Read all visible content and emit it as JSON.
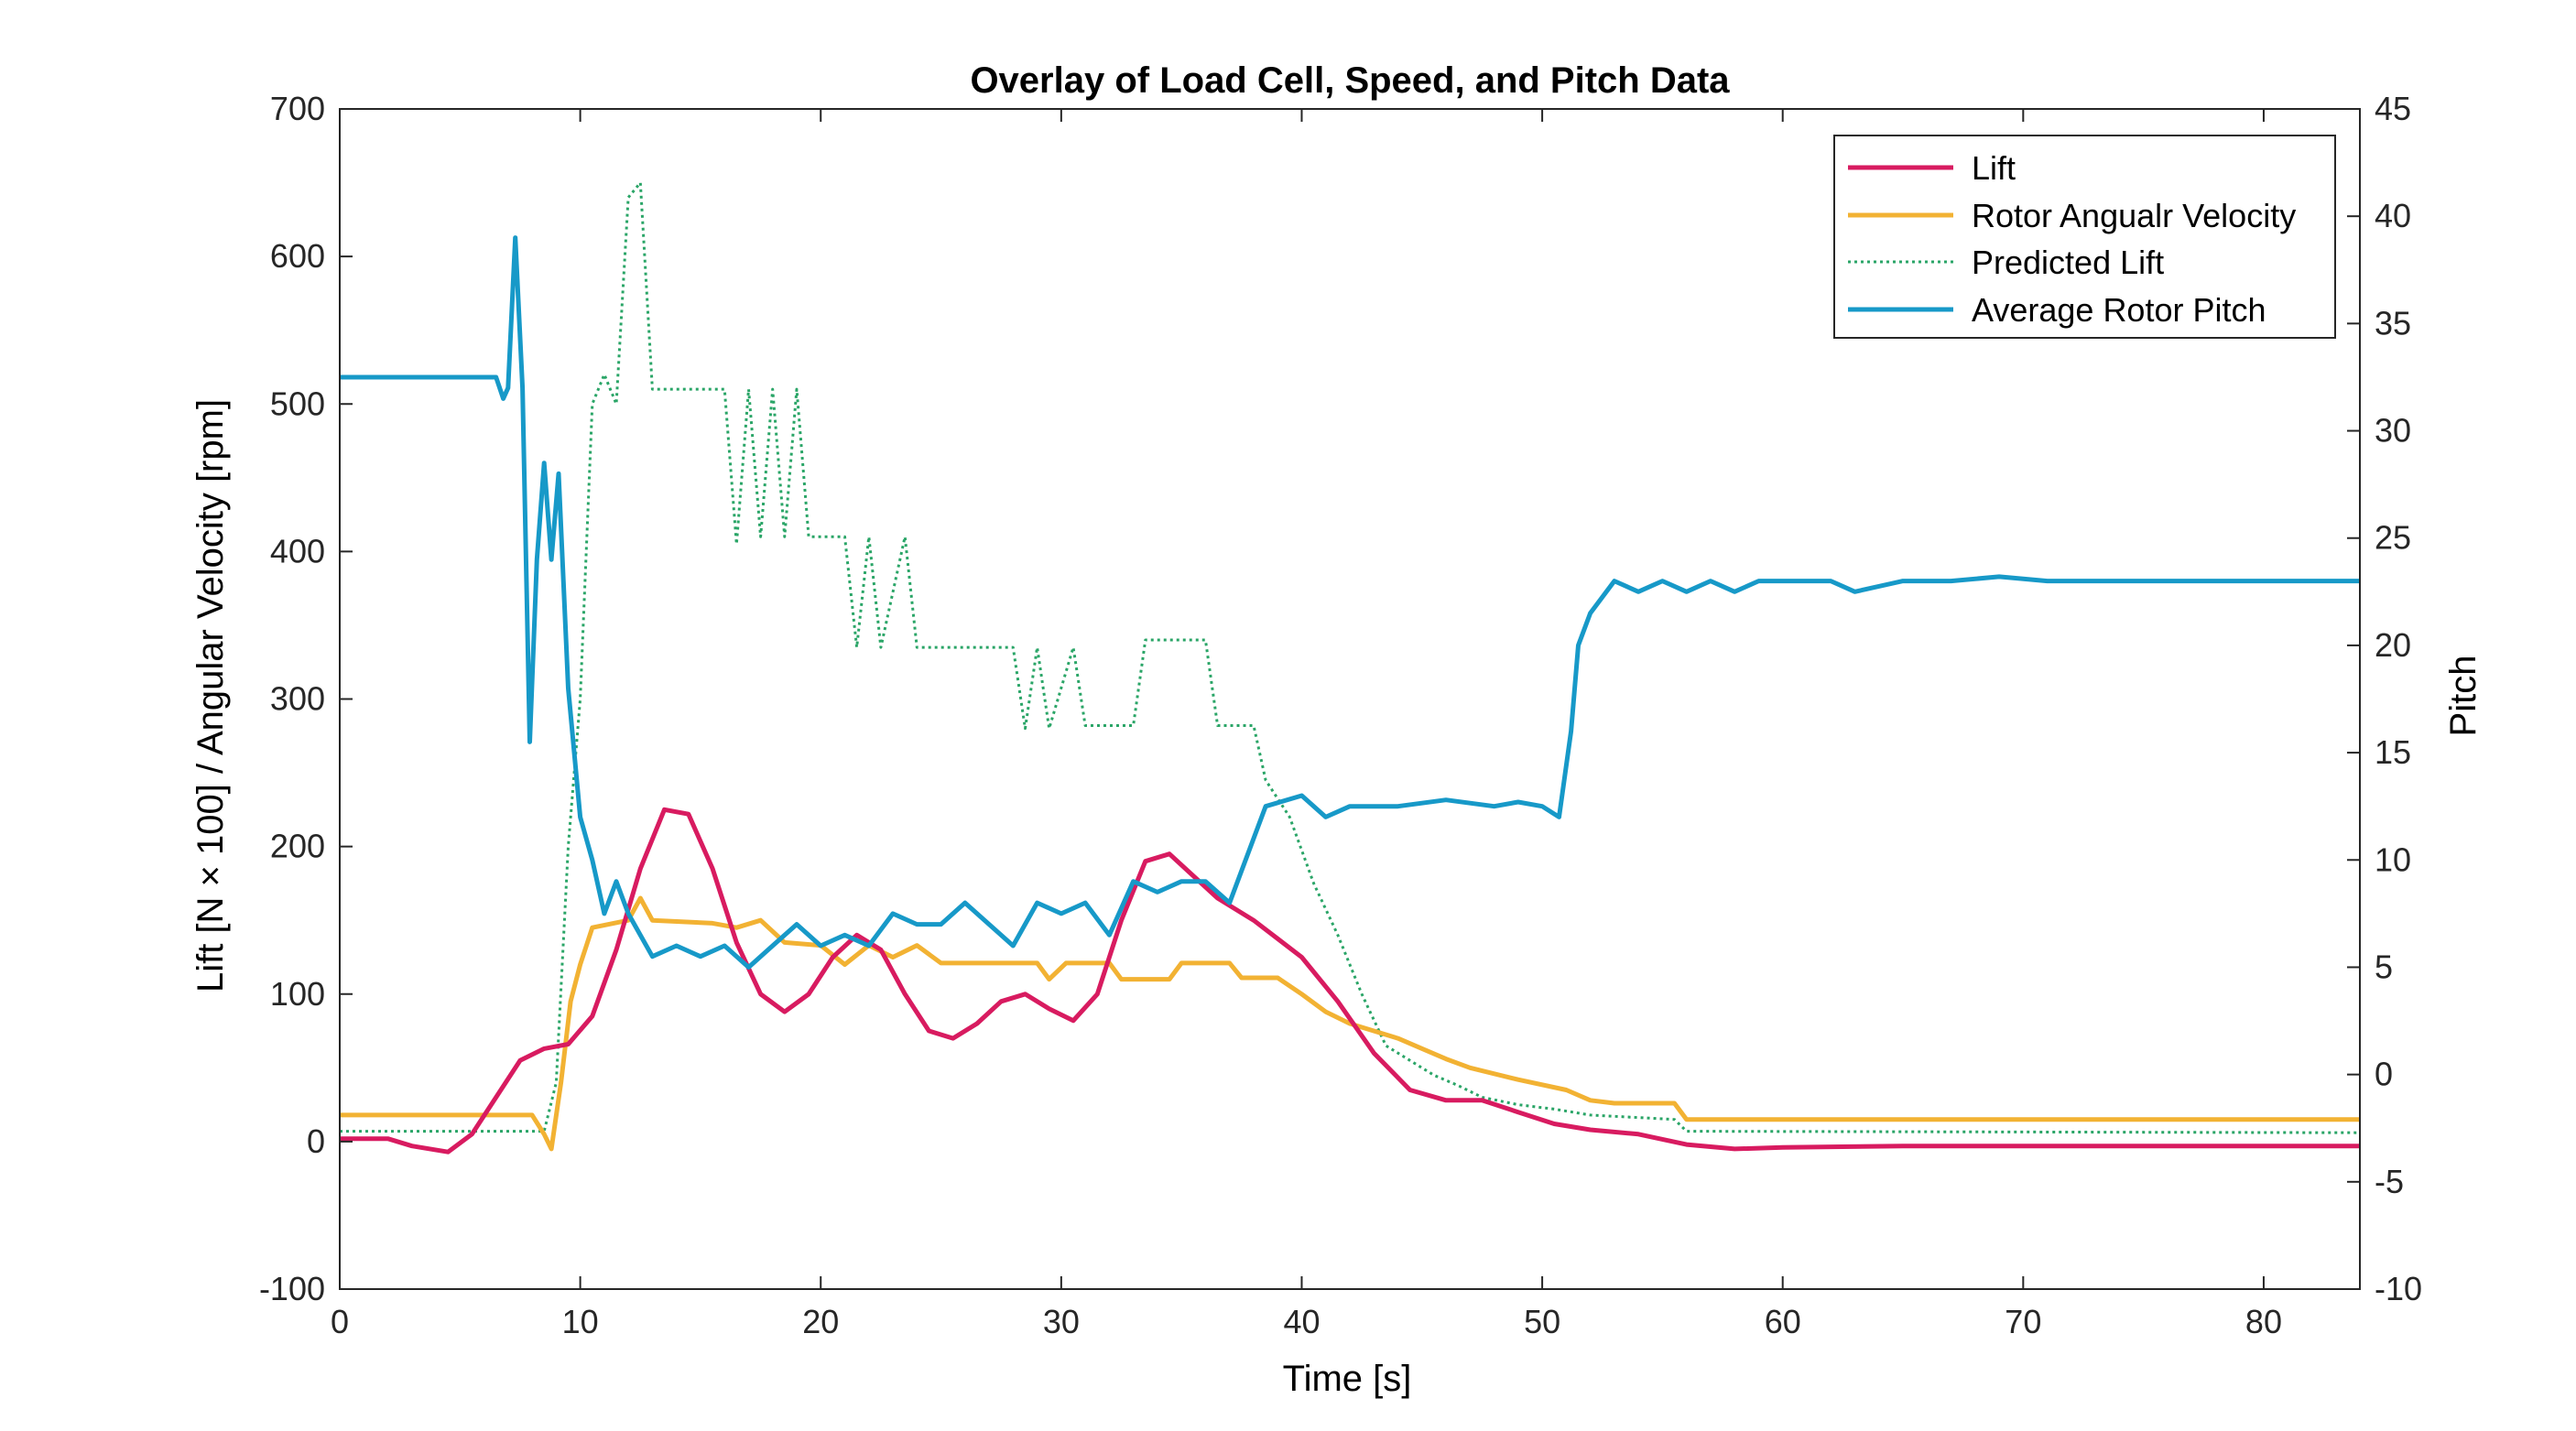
{
  "chart_data": {
    "type": "line",
    "title": "Overlay of Load Cell, Speed, and Pitch Data",
    "xlabel": "Time [s]",
    "ylabel_left": "Lift [N × 100] / Angular Velocity [rpm]",
    "ylabel_right": "Pitch",
    "xlim": [
      0,
      84
    ],
    "ylim_left": [
      -100,
      700
    ],
    "ylim_right": [
      -10,
      45
    ],
    "xticks": [
      "0",
      "10",
      "20",
      "30",
      "40",
      "50",
      "60",
      "70",
      "80"
    ],
    "yticks_left": [
      "-100",
      "0",
      "100",
      "200",
      "300",
      "400",
      "500",
      "600",
      "700"
    ],
    "yticks_right": [
      "-10",
      "-5",
      "0",
      "5",
      "10",
      "15",
      "20",
      "25",
      "30",
      "35",
      "40",
      "45"
    ],
    "legend_position": "top-right",
    "grid": false,
    "series": [
      {
        "name": "Lift",
        "axis": "left",
        "color": "#d81b60",
        "style": "solid",
        "points": [
          [
            0,
            2
          ],
          [
            2,
            2
          ],
          [
            3,
            -3
          ],
          [
            4.5,
            -7
          ],
          [
            5.5,
            5
          ],
          [
            6.5,
            30
          ],
          [
            7.5,
            55
          ],
          [
            8.5,
            63
          ],
          [
            9.5,
            66
          ],
          [
            10.5,
            85
          ],
          [
            11.5,
            130
          ],
          [
            12.5,
            185
          ],
          [
            13.5,
            225
          ],
          [
            14.5,
            222
          ],
          [
            15.5,
            185
          ],
          [
            16.5,
            135
          ],
          [
            17.5,
            100
          ],
          [
            18.5,
            88
          ],
          [
            19.5,
            100
          ],
          [
            20.5,
            125
          ],
          [
            21.5,
            140
          ],
          [
            22.5,
            130
          ],
          [
            23.5,
            100
          ],
          [
            24.5,
            75
          ],
          [
            25.5,
            70
          ],
          [
            26.5,
            80
          ],
          [
            27.5,
            95
          ],
          [
            28.5,
            100
          ],
          [
            29.5,
            90
          ],
          [
            30.5,
            82
          ],
          [
            31.5,
            100
          ],
          [
            32.5,
            150
          ],
          [
            33.5,
            190
          ],
          [
            34.5,
            195
          ],
          [
            35.5,
            180
          ],
          [
            36.5,
            165
          ],
          [
            38,
            150
          ],
          [
            40,
            125
          ],
          [
            41.5,
            95
          ],
          [
            43,
            60
          ],
          [
            44.5,
            35
          ],
          [
            46,
            28
          ],
          [
            47.5,
            28
          ],
          [
            49,
            20
          ],
          [
            50.5,
            12
          ],
          [
            52,
            8
          ],
          [
            54,
            5
          ],
          [
            56,
            -2
          ],
          [
            58,
            -5
          ],
          [
            60,
            -4
          ],
          [
            65,
            -3
          ],
          [
            70,
            -3
          ],
          [
            75,
            -3
          ],
          [
            80,
            -3
          ],
          [
            84,
            -3
          ]
        ]
      },
      {
        "name": "Rotor Angualr Velocity",
        "axis": "left",
        "color": "#f2b233",
        "style": "solid",
        "points": [
          [
            0,
            18
          ],
          [
            8,
            18
          ],
          [
            8.5,
            5
          ],
          [
            8.8,
            -5
          ],
          [
            9.2,
            40
          ],
          [
            9.6,
            95
          ],
          [
            10,
            120
          ],
          [
            10.5,
            145
          ],
          [
            12,
            150
          ],
          [
            12.5,
            165
          ],
          [
            13,
            150
          ],
          [
            15.5,
            148
          ],
          [
            16.5,
            145
          ],
          [
            17.5,
            150
          ],
          [
            18.5,
            135
          ],
          [
            20,
            133
          ],
          [
            21,
            120
          ],
          [
            22,
            133
          ],
          [
            23,
            125
          ],
          [
            24,
            133
          ],
          [
            25,
            121
          ],
          [
            29,
            121
          ],
          [
            29.5,
            110
          ],
          [
            30.2,
            121
          ],
          [
            32,
            121
          ],
          [
            32.5,
            110
          ],
          [
            34.5,
            110
          ],
          [
            35,
            121
          ],
          [
            37,
            121
          ],
          [
            37.5,
            111
          ],
          [
            39,
            111
          ],
          [
            40,
            100
          ],
          [
            41,
            88
          ],
          [
            42,
            80
          ],
          [
            44,
            70
          ],
          [
            46,
            56
          ],
          [
            47,
            50
          ],
          [
            49,
            42
          ],
          [
            51,
            35
          ],
          [
            52,
            28
          ],
          [
            53,
            26
          ],
          [
            55.5,
            26
          ],
          [
            56,
            15
          ],
          [
            84,
            15
          ]
        ]
      },
      {
        "name": "Predicted Lift",
        "axis": "left",
        "color": "#2aa567",
        "style": "dotted",
        "points": [
          [
            0,
            7
          ],
          [
            8.5,
            7
          ],
          [
            9,
            40
          ],
          [
            9.5,
            200
          ],
          [
            10,
            300
          ],
          [
            10.5,
            500
          ],
          [
            11,
            520
          ],
          [
            11.5,
            500
          ],
          [
            12,
            640
          ],
          [
            12.5,
            650
          ],
          [
            13,
            510
          ],
          [
            16,
            510
          ],
          [
            16.5,
            405
          ],
          [
            17,
            510
          ],
          [
            17.5,
            410
          ],
          [
            18,
            510
          ],
          [
            18.5,
            410
          ],
          [
            19,
            510
          ],
          [
            19.5,
            410
          ],
          [
            21,
            410
          ],
          [
            21.5,
            335
          ],
          [
            22,
            410
          ],
          [
            22.5,
            335
          ],
          [
            23.5,
            410
          ],
          [
            24,
            335
          ],
          [
            28,
            335
          ],
          [
            28.5,
            280
          ],
          [
            29,
            335
          ],
          [
            29.5,
            280
          ],
          [
            30.5,
            335
          ],
          [
            31,
            282
          ],
          [
            33,
            282
          ],
          [
            33.5,
            340
          ],
          [
            36,
            340
          ],
          [
            36.5,
            282
          ],
          [
            38,
            282
          ],
          [
            38.5,
            245
          ],
          [
            39.5,
            220
          ],
          [
            40.5,
            175
          ],
          [
            41.5,
            140
          ],
          [
            42.5,
            100
          ],
          [
            43.5,
            65
          ],
          [
            44.5,
            55
          ],
          [
            45.5,
            45
          ],
          [
            46.5,
            38
          ],
          [
            47.5,
            30
          ],
          [
            49,
            25
          ],
          [
            50.5,
            22
          ],
          [
            52,
            18
          ],
          [
            55.5,
            15
          ],
          [
            56,
            7
          ],
          [
            84,
            6
          ]
        ]
      },
      {
        "name": "Average Rotor Pitch",
        "axis": "right",
        "color": "#1799c8",
        "style": "solid",
        "points": [
          [
            0,
            32.5
          ],
          [
            6.5,
            32.5
          ],
          [
            6.8,
            31.5
          ],
          [
            7,
            32
          ],
          [
            7.3,
            39
          ],
          [
            7.6,
            32
          ],
          [
            7.9,
            15.5
          ],
          [
            8.2,
            24
          ],
          [
            8.5,
            28.5
          ],
          [
            8.8,
            24
          ],
          [
            9.1,
            28
          ],
          [
            9.5,
            18
          ],
          [
            10,
            12
          ],
          [
            10.5,
            10
          ],
          [
            11,
            7.5
          ],
          [
            11.5,
            9
          ],
          [
            12,
            7.5
          ],
          [
            13,
            5.5
          ],
          [
            14,
            6
          ],
          [
            15,
            5.5
          ],
          [
            16,
            6
          ],
          [
            17,
            5
          ],
          [
            18,
            6
          ],
          [
            19,
            7
          ],
          [
            20,
            6
          ],
          [
            21,
            6.5
          ],
          [
            22,
            6
          ],
          [
            23,
            7.5
          ],
          [
            24,
            7
          ],
          [
            25,
            7
          ],
          [
            26,
            8
          ],
          [
            27,
            7
          ],
          [
            28,
            6
          ],
          [
            29,
            8
          ],
          [
            30,
            7.5
          ],
          [
            31,
            8
          ],
          [
            32,
            6.5
          ],
          [
            33,
            9
          ],
          [
            34,
            8.5
          ],
          [
            35,
            9
          ],
          [
            36,
            9
          ],
          [
            37,
            8
          ],
          [
            38,
            11
          ],
          [
            38.5,
            12.5
          ],
          [
            40,
            13
          ],
          [
            41,
            12
          ],
          [
            42,
            12.5
          ],
          [
            44,
            12.5
          ],
          [
            46,
            12.8
          ],
          [
            48,
            12.5
          ],
          [
            49,
            12.7
          ],
          [
            50,
            12.5
          ],
          [
            50.7,
            12
          ],
          [
            51.2,
            16
          ],
          [
            51.5,
            20
          ],
          [
            52,
            21.5
          ],
          [
            53,
            23
          ],
          [
            54,
            22.5
          ],
          [
            55,
            23
          ],
          [
            56,
            22.5
          ],
          [
            57,
            23
          ],
          [
            58,
            22.5
          ],
          [
            59,
            23
          ],
          [
            60,
            23
          ],
          [
            62,
            23
          ],
          [
            63,
            22.5
          ],
          [
            65,
            23
          ],
          [
            67,
            23
          ],
          [
            69,
            23.2
          ],
          [
            71,
            23
          ],
          [
            73,
            23
          ],
          [
            75,
            23
          ],
          [
            77,
            23
          ],
          [
            79,
            23
          ],
          [
            81,
            23
          ],
          [
            83,
            23
          ],
          [
            84,
            23
          ]
        ]
      }
    ]
  }
}
